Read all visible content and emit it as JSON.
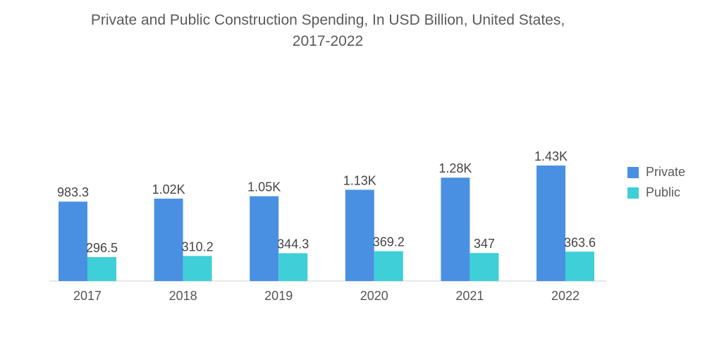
{
  "title_line1": "Private and Public Construction Spending, In USD Billion, United States,",
  "title_line2": "2017-2022",
  "chart_data": {
    "type": "bar",
    "title": "Private and Public Construction Spending, In USD Billion, United States, 2017-2022",
    "categories": [
      "2017",
      "2018",
      "2019",
      "2020",
      "2021",
      "2022"
    ],
    "series": [
      {
        "name": "Private",
        "color": "#4a90e2",
        "values": [
          983.3,
          1020,
          1050,
          1130,
          1280,
          1430
        ],
        "labels": [
          "983.3",
          "1.02K",
          "1.05K",
          "1.13K",
          "1.28K",
          "1.43K"
        ]
      },
      {
        "name": "Public",
        "color": "#3ecfd8",
        "values": [
          296.5,
          310.2,
          344.3,
          369.2,
          347,
          363.6
        ],
        "labels": [
          "296.5",
          "310.2",
          "344.3",
          "369.2",
          "347",
          "363.6"
        ]
      }
    ],
    "xlabel": "",
    "ylabel": "",
    "ylim": [
      0,
      1430
    ],
    "grid": false,
    "legend": "right"
  }
}
